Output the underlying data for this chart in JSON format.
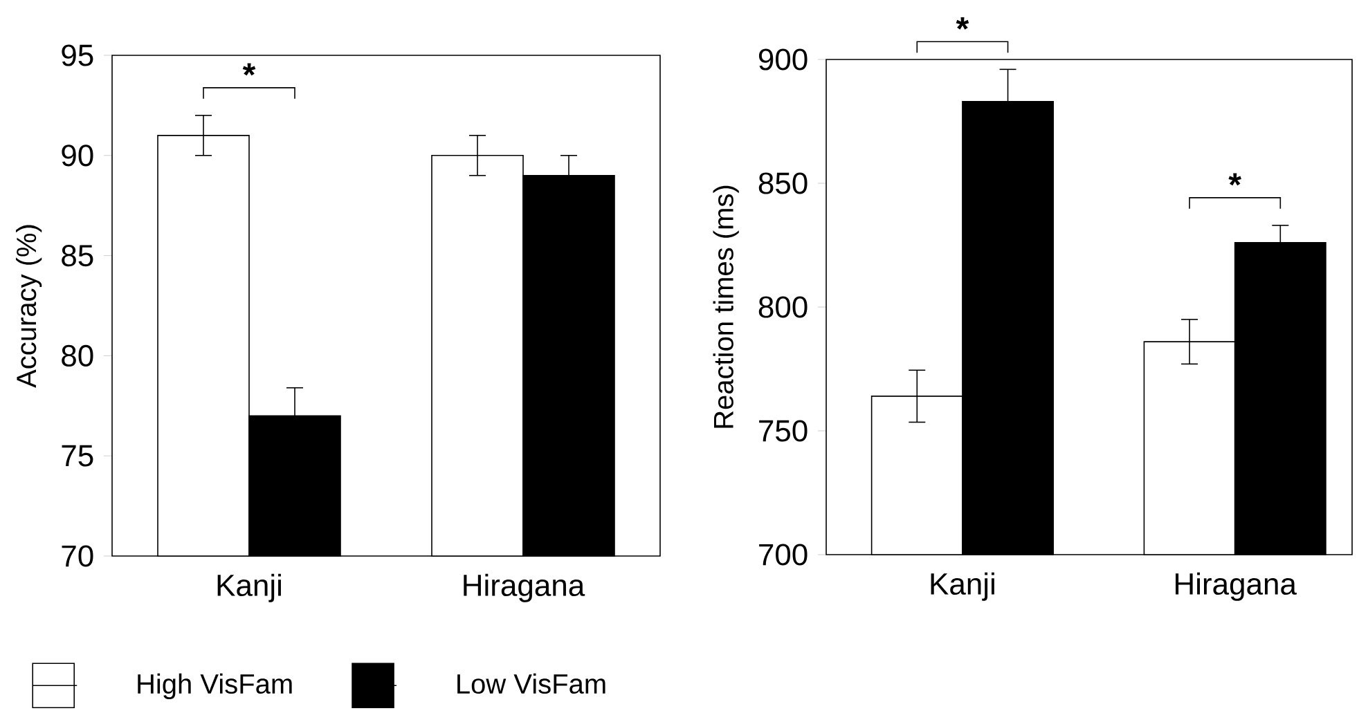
{
  "chart_data": [
    {
      "type": "bar",
      "ylabel": "Accuracy (%)",
      "categories": [
        "Kanji",
        "Hiragana"
      ],
      "ylim": [
        70,
        95
      ],
      "yticks": [
        70,
        75,
        80,
        85,
        90,
        95
      ],
      "legend": "bottom",
      "series": [
        {
          "name": "High VisFam",
          "color": "#ffffff",
          "values": [
            91,
            90
          ],
          "errors": [
            1,
            1
          ]
        },
        {
          "name": "Low VisFam",
          "color": "#000000",
          "values": [
            77,
            89
          ],
          "errors": [
            1.4,
            1
          ]
        }
      ],
      "annotations": [
        "*"
      ]
    },
    {
      "type": "bar",
      "ylabel": "Reaction times (ms)",
      "categories": [
        "Kanji",
        "Hiragana"
      ],
      "ylim": [
        700,
        900
      ],
      "yticks": [
        700,
        750,
        800,
        850,
        900
      ],
      "series": [
        {
          "color": "#ffffff",
          "values": [
            764,
            786
          ],
          "errors": [
            10.5,
            9
          ]
        },
        {
          "color": "#000000",
          "values": [
            883,
            826
          ],
          "errors": [
            13,
            7
          ]
        }
      ],
      "annotations": [
        "*",
        "*"
      ]
    }
  ]
}
